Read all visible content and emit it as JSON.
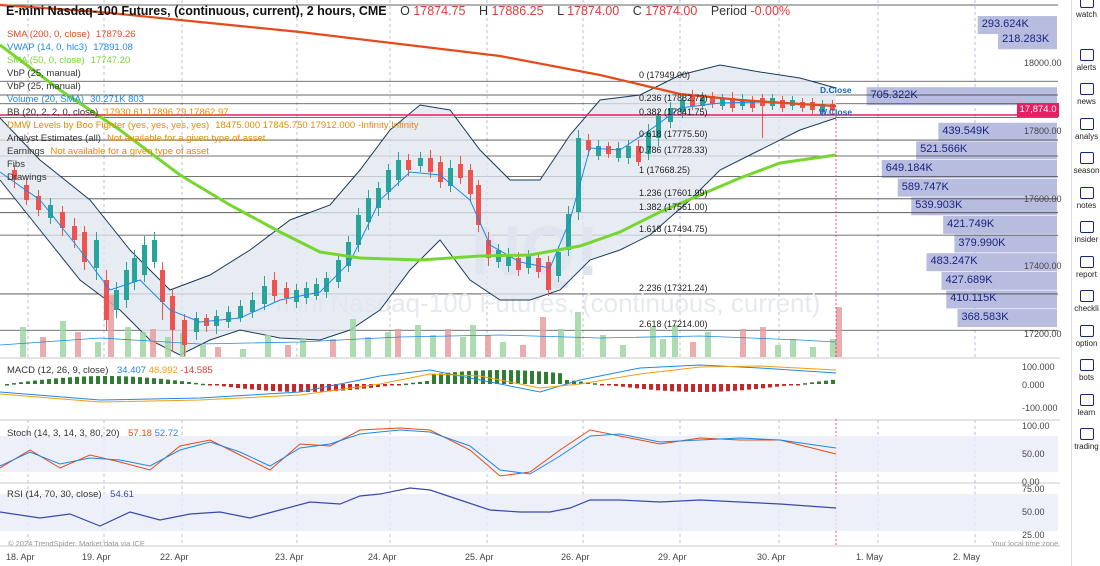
{
  "header": {
    "title": "E-mini Nasdaq-100 Futures, (continuous, current), 2 hours, CME",
    "open_label": "O",
    "open": "17874.75",
    "high_label": "H",
    "high": "17886.25",
    "low_label": "L",
    "low": "17874.00",
    "close_label": "C",
    "close": "17874.00",
    "period_label": "Period",
    "period": "-0.00%"
  },
  "legend": [
    {
      "text": "SMA (200, 0, close)",
      "value": "17879.26",
      "color": "#e64a19"
    },
    {
      "text": "VWAP (14, 0, hlc3)",
      "value": "17891.08",
      "color": "#1e88e5"
    },
    {
      "text": "SMA (50, 0, close)",
      "value": "17747.20",
      "color": "#76d62f"
    },
    {
      "text": "VbP (25, manual)",
      "value": "",
      "color": "#333333"
    },
    {
      "text": "VbP (25, manual)",
      "value": "",
      "color": "#333333"
    },
    {
      "text": "Volume (20, SMA)",
      "value": "30.271K 803",
      "color": "#1e88e5"
    },
    {
      "text": "BB (20, 2, 2, 0, close)",
      "value": "17930.61  17896.79  17862.97",
      "color": "#333333"
    },
    {
      "text": "DMW Levels by Boo Fighter (yes, yes, yes, yes)",
      "value": "18475.000  17845.750  17912.000  -Infinity  Infinity",
      "color": "#e68a00"
    },
    {
      "text": "Analyst Estimates (all)",
      "value": "Not available for a given type of asset",
      "color": "#333333"
    },
    {
      "text": "Earnings",
      "value": "Not available for a given type of asset",
      "color": "#333333"
    },
    {
      "text": "Fibs",
      "value": "",
      "color": "#333333"
    },
    {
      "text": "Drawings",
      "value": "",
      "color": "#333333"
    }
  ],
  "price_axis": [
    "18000.00",
    "17800.00",
    "17600.00",
    "17400.00",
    "17200.00"
  ],
  "current_price": "17,874.0",
  "vbp_bins": [
    {
      "label": "293.624K",
      "value": 293.624,
      "price": 18115
    },
    {
      "label": "218.283K",
      "value": 218.283,
      "price": 18070
    },
    {
      "label": "705.322K",
      "value": 705.322,
      "price": 17905
    },
    {
      "label": "439.549K",
      "value": 439.549,
      "price": 17800
    },
    {
      "label": "521.566K",
      "value": 521.566,
      "price": 17745
    },
    {
      "label": "649.184K",
      "value": 649.184,
      "price": 17690
    },
    {
      "label": "589.747K",
      "value": 589.747,
      "price": 17635
    },
    {
      "label": "539.903K",
      "value": 539.903,
      "price": 17580
    },
    {
      "label": "421.749K",
      "value": 421.749,
      "price": 17525
    },
    {
      "label": "379.990K",
      "value": 379.99,
      "price": 17470
    },
    {
      "label": "483.247K",
      "value": 483.247,
      "price": 17415
    },
    {
      "label": "427.689K",
      "value": 427.689,
      "price": 17360
    },
    {
      "label": "410.115K",
      "value": 410.115,
      "price": 17305
    },
    {
      "label": "368.583K",
      "value": 368.583,
      "price": 17250
    }
  ],
  "fibs": [
    {
      "label": "0 (17949.00)",
      "price": 17949.0
    },
    {
      "label": "0.236 (17882.72)",
      "price": 17882.72
    },
    {
      "label": "0.382 (17841.75)",
      "price": 17841.75
    },
    {
      "label": "0.618 (17775.50)",
      "price": 17775.5
    },
    {
      "label": "0.786 (17728.33)",
      "price": 17728.33
    },
    {
      "label": "1 (17668.25)",
      "price": 17668.25
    },
    {
      "label": "1.236 (17601.99)",
      "price": 17601.99
    },
    {
      "label": "1.382 (17561.00)",
      "price": 17561.0
    },
    {
      "label": "1.618 (17494.75)",
      "price": 17494.75
    },
    {
      "label": "2.236 (17321.24)",
      "price": 17321.24
    },
    {
      "label": "2.618 (17214.00)",
      "price": 17214.0
    }
  ],
  "tags": {
    "d_close": "D.Close",
    "w_close": "W.Close"
  },
  "watermark": "NQ!",
  "watermark_sub": "E-mini Nasdaq-100 Futures, (continuous, current)",
  "macd": {
    "label": "MACD (12, 26, 9, close)",
    "v1": "34.407",
    "v2": "48.992",
    "v3": "-14.585",
    "axis": [
      "100.000",
      "0.000",
      "-100.000"
    ]
  },
  "stoch": {
    "label": "Stoch (14, 3, 14, 3, 80, 20)",
    "v1": "57.18",
    "v2": "52.72",
    "axis": [
      "100.00",
      "50.00",
      "0.00"
    ]
  },
  "rsi": {
    "label": "RSI (14, 70, 30, close)",
    "v1": "54.61",
    "axis": [
      "75.00",
      "50.00",
      "25.00"
    ]
  },
  "x_axis": [
    "18. Apr",
    "19. Apr",
    "22. Apr",
    "23. Apr",
    "24. Apr",
    "25. Apr",
    "26. Apr",
    "29. Apr",
    "30. Apr",
    "1. May",
    "2. May"
  ],
  "footer_left": "© 2024 TrendSpider. Market data via ICE",
  "footer_right": "Your local time zone",
  "sidebar": [
    "watch",
    "alerts",
    "news",
    "analys",
    "season",
    "notes",
    "insider",
    "report",
    "checkli",
    "option",
    "bots",
    "learn",
    "trading"
  ],
  "colors": {
    "up": "#26a69a",
    "down": "#ef5350",
    "sma200": "#e64a19",
    "sma50": "#76d62f",
    "vwap": "#1e88e5",
    "bb": "#1a3a5c",
    "vbp": "#b8bde0",
    "accent": "#e91e63"
  }
}
